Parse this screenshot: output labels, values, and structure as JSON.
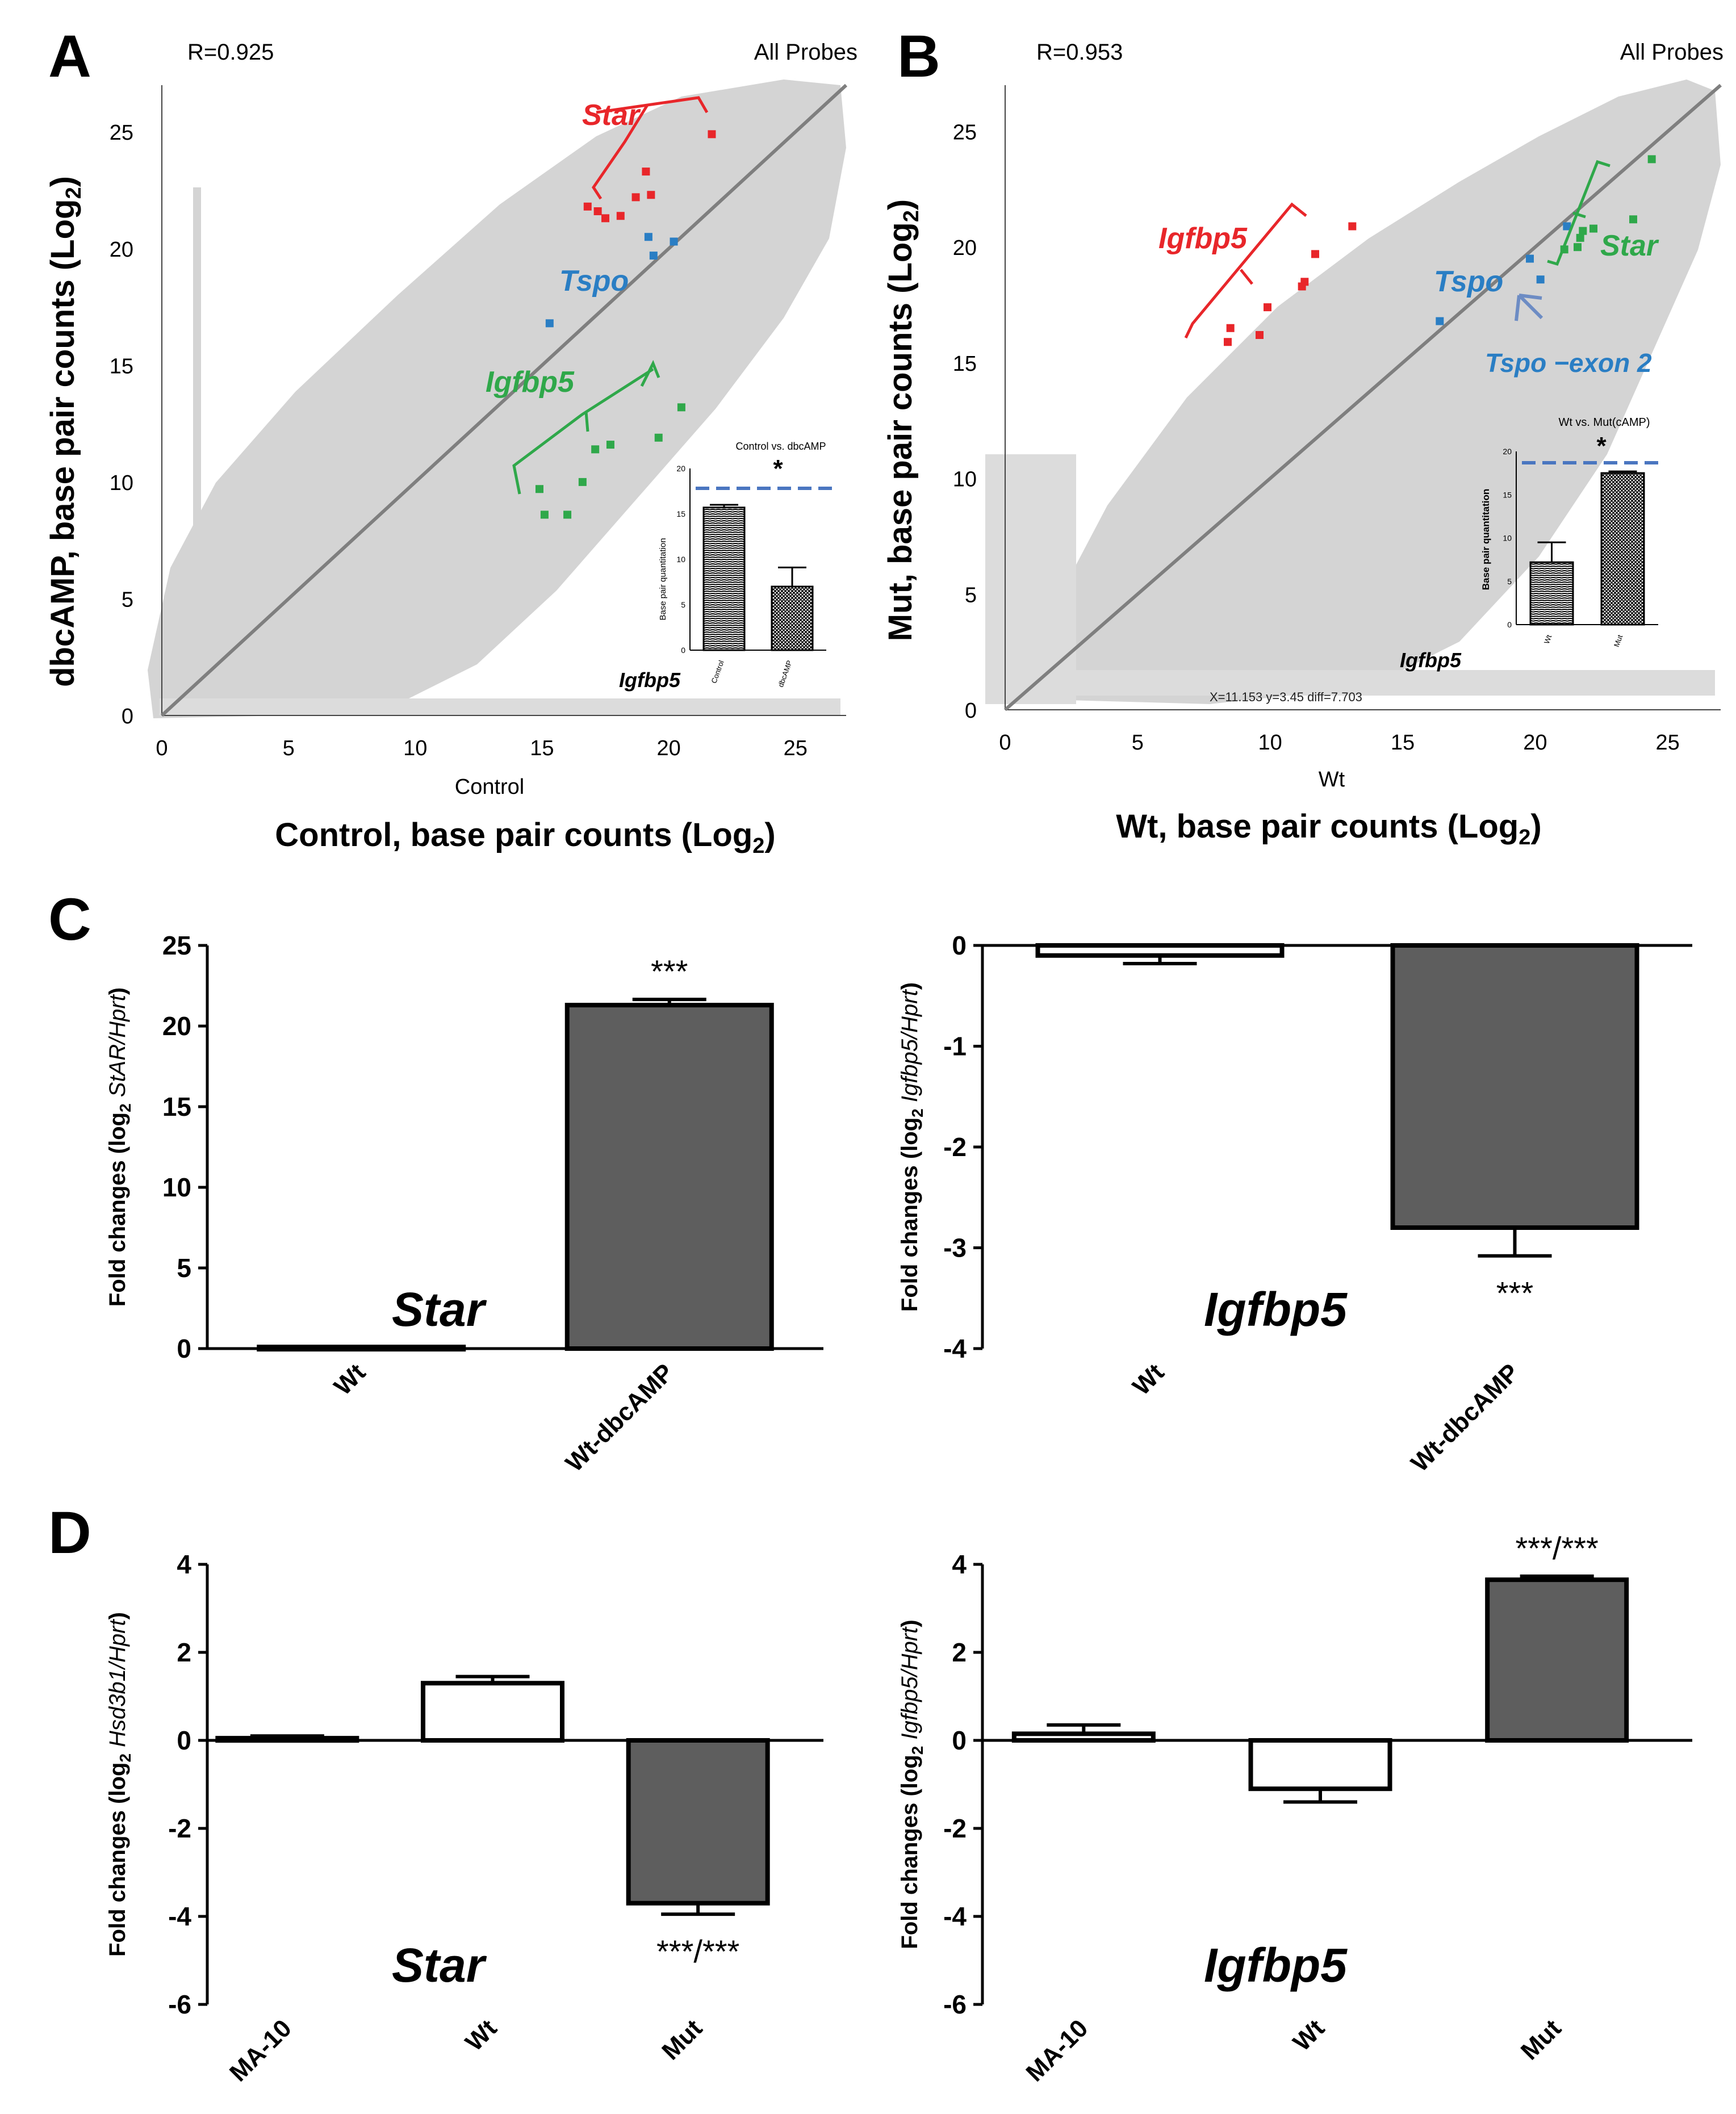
{
  "colors": {
    "star_red": "#e8262a",
    "tspo_blue": "#2a7ec4",
    "igfbp5_green": "#2fa84a",
    "scatter_gray": "#d4d4d4",
    "diag_gray": "#7f7f7f",
    "bar_dark": "#5e5e5e",
    "dash_blue": "#4a76c0"
  },
  "panels": {
    "a": {
      "letter": "A",
      "r_value": "R=0.925",
      "probes_label": "All Probes",
      "x_small_label": "Control",
      "x_big_label": "Control, base pair counts (Log",
      "y_big_label": "dbcAMP, base pair counts (Log",
      "log_sub": "2",
      "close_paren": ")",
      "gene_star": "Star",
      "gene_tspo": "Tspo",
      "gene_igfbp5": "Igfbp5",
      "inset_title": "Control vs. dbcAMP",
      "inset_gene": "Igfbp5",
      "inset_ylabel": "Base pair quantitation",
      "inset_star": "*"
    },
    "b": {
      "letter": "B",
      "r_value": "R=0.953",
      "probes_label": "All Probes",
      "x_small_label": "Wt",
      "x_big_label": "Wt, base pair counts (Log",
      "y_big_label": "Mut, base pair counts (Log",
      "log_sub": "2",
      "close_paren": ")",
      "gene_star": "Star",
      "gene_tspo": "Tspo",
      "gene_igfbp5": "Igfbp5",
      "tspo_exon_label": "Tspo −exon 2",
      "inset_title": "Wt vs. Mut(cAMP)",
      "inset_gene": "Igfbp5",
      "inset_ylabel": "Base pair quantitation",
      "inset_star": "*",
      "cursor_readout": "X=11.153 y=3.45 diff=7.703"
    },
    "c": {
      "letter": "C"
    },
    "d": {
      "letter": "D"
    }
  },
  "chart_data": [
    {
      "id": "A",
      "type": "scatter",
      "title": "",
      "xlabel": "Control, base pair counts (Log2)",
      "ylabel": "dbcAMP, base pair counts (Log2)",
      "xlim": [
        0,
        27
      ],
      "ylim": [
        0,
        27
      ],
      "xticks": [
        0,
        5,
        10,
        15,
        20,
        25
      ],
      "yticks": [
        0,
        5,
        10,
        15,
        20,
        25
      ],
      "diagonal": "y=x",
      "r": 0.925,
      "highlighted": [
        {
          "gene": "Star",
          "color": "red",
          "points": [
            [
              16.8,
              21.8
            ],
            [
              17.2,
              21.6
            ],
            [
              17.5,
              21.3
            ],
            [
              18.1,
              21.4
            ],
            [
              18.7,
              22.2
            ],
            [
              19.3,
              22.3
            ],
            [
              19.1,
              23.3
            ],
            [
              21.7,
              24.9
            ]
          ]
        },
        {
          "gene": "Tspo",
          "color": "blue",
          "points": [
            [
              15.3,
              16.8
            ],
            [
              19.2,
              20.5
            ],
            [
              19.4,
              19.7
            ],
            [
              20.2,
              20.3
            ]
          ]
        },
        {
          "gene": "Igfbp5",
          "color": "green",
          "points": [
            [
              14.9,
              9.7
            ],
            [
              15.1,
              8.6
            ],
            [
              16.0,
              8.6
            ],
            [
              16.6,
              10.0
            ],
            [
              17.1,
              11.4
            ],
            [
              17.7,
              11.6
            ],
            [
              19.6,
              11.9
            ],
            [
              20.5,
              13.2
            ]
          ]
        }
      ],
      "inset": {
        "type": "bar",
        "title": "Control vs. dbcAMP",
        "gene": "Igfbp5",
        "ylabel": "Base pair quantitation",
        "categories": [
          "Control",
          "dbcAMP"
        ],
        "values": [
          15.7,
          7.0
        ],
        "errors": [
          0.3,
          2.1
        ],
        "ylim": [
          0,
          20
        ],
        "yticks": [
          0,
          5,
          10,
          15,
          20
        ],
        "significance": "*"
      }
    },
    {
      "id": "B",
      "type": "scatter",
      "title": "",
      "xlabel": "Wt, base pair counts (Log2)",
      "ylabel": "Mut, base pair counts (Log2)",
      "xlim": [
        0,
        27
      ],
      "ylim": [
        0,
        27
      ],
      "xticks": [
        0,
        5,
        10,
        15,
        20,
        25
      ],
      "yticks": [
        0,
        5,
        10,
        15,
        20,
        25
      ],
      "diagonal": "y=x",
      "r": 0.953,
      "highlighted": [
        {
          "gene": "Igfbp5",
          "color": "red",
          "points": [
            [
              8.4,
              15.9
            ],
            [
              8.5,
              16.5
            ],
            [
              9.6,
              16.2
            ],
            [
              9.9,
              17.4
            ],
            [
              11.2,
              18.3
            ],
            [
              11.3,
              18.5
            ],
            [
              11.7,
              19.7
            ],
            [
              13.1,
              20.9
            ]
          ]
        },
        {
          "gene": "Tspo",
          "color": "blue",
          "points": [
            [
              16.4,
              16.8
            ],
            [
              19.8,
              19.5
            ],
            [
              20.2,
              18.6
            ],
            [
              21.2,
              20.9
            ]
          ]
        },
        {
          "gene": "Star",
          "color": "green",
          "points": [
            [
              21.1,
              19.9
            ],
            [
              21.6,
              20.0
            ],
            [
              21.7,
              20.4
            ],
            [
              21.8,
              20.7
            ],
            [
              22.2,
              20.8
            ],
            [
              23.7,
              21.2
            ],
            [
              24.4,
              23.8
            ]
          ]
        }
      ],
      "inset": {
        "type": "bar",
        "title": "Wt vs. Mut(cAMP)",
        "gene": "Igfbp5",
        "ylabel": "Base pair quantitation",
        "categories": [
          "Wt",
          "Mut"
        ],
        "values": [
          7.2,
          17.5
        ],
        "errors": [
          2.3,
          0.2
        ],
        "ylim": [
          0,
          20
        ],
        "yticks": [
          0,
          5,
          10,
          15,
          20
        ],
        "significance": "*"
      }
    },
    {
      "id": "C-left",
      "type": "bar",
      "gene_label": "Star",
      "ylabel_prefix": "Fold changes (log",
      "ylabel_sub": "2",
      "ylabel_gene": "StAR/Hprt",
      "ylabel_suffix": ")",
      "categories": [
        "Wt",
        "Wt-dbcAMP"
      ],
      "values": [
        0.1,
        21.3
      ],
      "errors": [
        0,
        0.35
      ],
      "fills": [
        "#ffffff",
        "#5e5e5e"
      ],
      "significance": [
        "",
        "***"
      ],
      "ylim": [
        0,
        25
      ],
      "yticks": [
        "25",
        "20",
        "15",
        "10",
        "5",
        "0"
      ]
    },
    {
      "id": "C-right",
      "type": "bar",
      "gene_label": "Igfbp5",
      "ylabel_prefix": "Fold changes (log",
      "ylabel_sub": "2",
      "ylabel_gene": "Igfbp5/Hprt",
      "ylabel_suffix": ")",
      "categories": [
        "Wt",
        "Wt-dbcAMP"
      ],
      "values": [
        -0.1,
        -2.8
      ],
      "errors": [
        0.08,
        0.28
      ],
      "fills": [
        "#ffffff",
        "#5e5e5e"
      ],
      "significance": [
        "",
        "***"
      ],
      "ylim": [
        -4,
        0
      ],
      "yticks": [
        "0",
        "-1",
        "-2",
        "-3",
        "-4"
      ]
    },
    {
      "id": "D-left",
      "type": "bar",
      "gene_label": "Star",
      "ylabel_prefix": "Fold changes (log",
      "ylabel_sub": "2",
      "ylabel_gene": "Hsd3b1/Hprt",
      "ylabel_suffix": ")",
      "categories": [
        "MA-10",
        "Wt",
        "Mut"
      ],
      "values": [
        0.05,
        1.3,
        -3.7
      ],
      "errors": [
        0.05,
        0.15,
        0.25
      ],
      "fills": [
        "#ffffff",
        "#ffffff",
        "#5e5e5e"
      ],
      "significance": [
        "",
        "",
        "***/***"
      ],
      "ylim": [
        -6,
        4
      ],
      "yticks": [
        "4",
        "2",
        "0",
        "-2",
        "-4",
        "-6"
      ]
    },
    {
      "id": "D-right",
      "type": "bar",
      "gene_label": "Igfbp5",
      "ylabel_prefix": "Fold changes (log",
      "ylabel_sub": "2",
      "ylabel_gene": "Igfbp5/Hprt",
      "ylabel_suffix": ")",
      "categories": [
        "MA-10",
        "Wt",
        "Mut"
      ],
      "values": [
        0.15,
        -1.1,
        3.65
      ],
      "errors": [
        0.2,
        0.3,
        0.08
      ],
      "fills": [
        "#ffffff",
        "#ffffff",
        "#5e5e5e"
      ],
      "significance": [
        "",
        "",
        "***/***"
      ],
      "ylim": [
        -6,
        4
      ],
      "yticks": [
        "4",
        "2",
        "0",
        "-2",
        "-4",
        "-6"
      ]
    }
  ]
}
